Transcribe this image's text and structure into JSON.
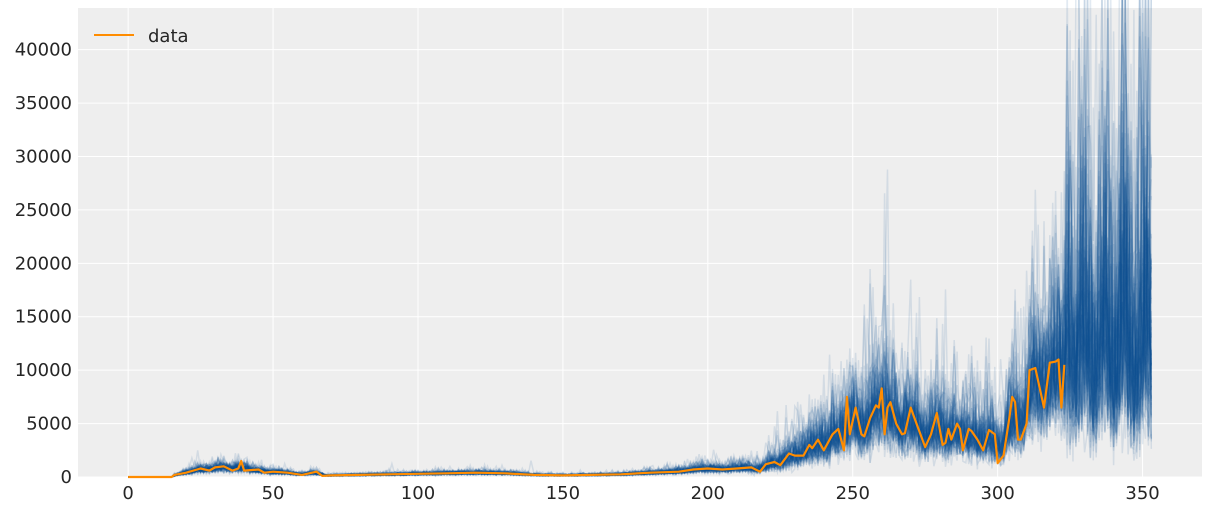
{
  "chart_data": {
    "type": "line",
    "title": "",
    "xlabel": "",
    "ylabel": "",
    "xlim": [
      -17.3,
      370.5
    ],
    "ylim": [
      0,
      43900
    ],
    "grid": true,
    "legend": {
      "placement": "top-left",
      "entries": [
        "data"
      ]
    },
    "xticks": [
      0,
      50,
      100,
      150,
      200,
      250,
      300,
      350
    ],
    "yticks": [
      0,
      5000,
      10000,
      15000,
      20000,
      25000,
      30000,
      35000,
      40000
    ],
    "colors": {
      "data": "#ff8c00",
      "predictive": "#0f5296",
      "background": "#eeeeee",
      "grid": "#ffffff"
    },
    "series": [
      {
        "name": "data",
        "points": [
          [
            0,
            0
          ],
          [
            15,
            0
          ],
          [
            16,
            200
          ],
          [
            20,
            400
          ],
          [
            25,
            800
          ],
          [
            28,
            600
          ],
          [
            30,
            900
          ],
          [
            33,
            1000
          ],
          [
            36,
            600
          ],
          [
            38,
            800
          ],
          [
            39,
            1500
          ],
          [
            40,
            600
          ],
          [
            45,
            700
          ],
          [
            47,
            400
          ],
          [
            50,
            500
          ],
          [
            55,
            400
          ],
          [
            60,
            200
          ],
          [
            65,
            500
          ],
          [
            67,
            100
          ],
          [
            70,
            150
          ],
          [
            80,
            200
          ],
          [
            90,
            250
          ],
          [
            100,
            300
          ],
          [
            110,
            350
          ],
          [
            120,
            400
          ],
          [
            130,
            350
          ],
          [
            140,
            200
          ],
          [
            150,
            150
          ],
          [
            160,
            200
          ],
          [
            170,
            250
          ],
          [
            180,
            400
          ],
          [
            190,
            500
          ],
          [
            195,
            700
          ],
          [
            200,
            800
          ],
          [
            205,
            700
          ],
          [
            210,
            800
          ],
          [
            215,
            900
          ],
          [
            218,
            500
          ],
          [
            220,
            1200
          ],
          [
            223,
            1400
          ],
          [
            225,
            1100
          ],
          [
            228,
            2200
          ],
          [
            230,
            2000
          ],
          [
            233,
            2000
          ],
          [
            235,
            3000
          ],
          [
            236,
            2700
          ],
          [
            238,
            3500
          ],
          [
            240,
            2500
          ],
          [
            243,
            4000
          ],
          [
            245,
            4500
          ],
          [
            247,
            2500
          ],
          [
            248,
            7500
          ],
          [
            249,
            4000
          ],
          [
            251,
            6500
          ],
          [
            253,
            4000
          ],
          [
            254,
            3800
          ],
          [
            256,
            5500
          ],
          [
            258,
            6700
          ],
          [
            259,
            6500
          ],
          [
            260,
            8300
          ],
          [
            261,
            4000
          ],
          [
            262,
            6500
          ],
          [
            263,
            7000
          ],
          [
            265,
            5000
          ],
          [
            267,
            4000
          ],
          [
            268,
            4100
          ],
          [
            270,
            6500
          ],
          [
            272,
            5000
          ],
          [
            275,
            2800
          ],
          [
            277,
            4000
          ],
          [
            279,
            6000
          ],
          [
            281,
            3000
          ],
          [
            282,
            3200
          ],
          [
            283,
            4500
          ],
          [
            284,
            3500
          ],
          [
            286,
            5000
          ],
          [
            287,
            4500
          ],
          [
            288,
            2500
          ],
          [
            290,
            4500
          ],
          [
            291,
            4300
          ],
          [
            293,
            3500
          ],
          [
            295,
            2500
          ],
          [
            297,
            4400
          ],
          [
            299,
            4000
          ],
          [
            300,
            1300
          ],
          [
            302,
            2000
          ],
          [
            304,
            5500
          ],
          [
            305,
            7500
          ],
          [
            306,
            7000
          ],
          [
            307,
            3500
          ],
          [
            308,
            3500
          ],
          [
            310,
            5000
          ],
          [
            311,
            10000
          ],
          [
            313,
            10200
          ],
          [
            316,
            6500
          ],
          [
            318,
            10700
          ],
          [
            320,
            10800
          ],
          [
            321,
            11000
          ],
          [
            322,
            6500
          ],
          [
            323,
            10500
          ]
        ]
      }
    ],
    "predictive": {
      "x_range": [
        0,
        353
      ],
      "level_after_data": 12000
    }
  }
}
